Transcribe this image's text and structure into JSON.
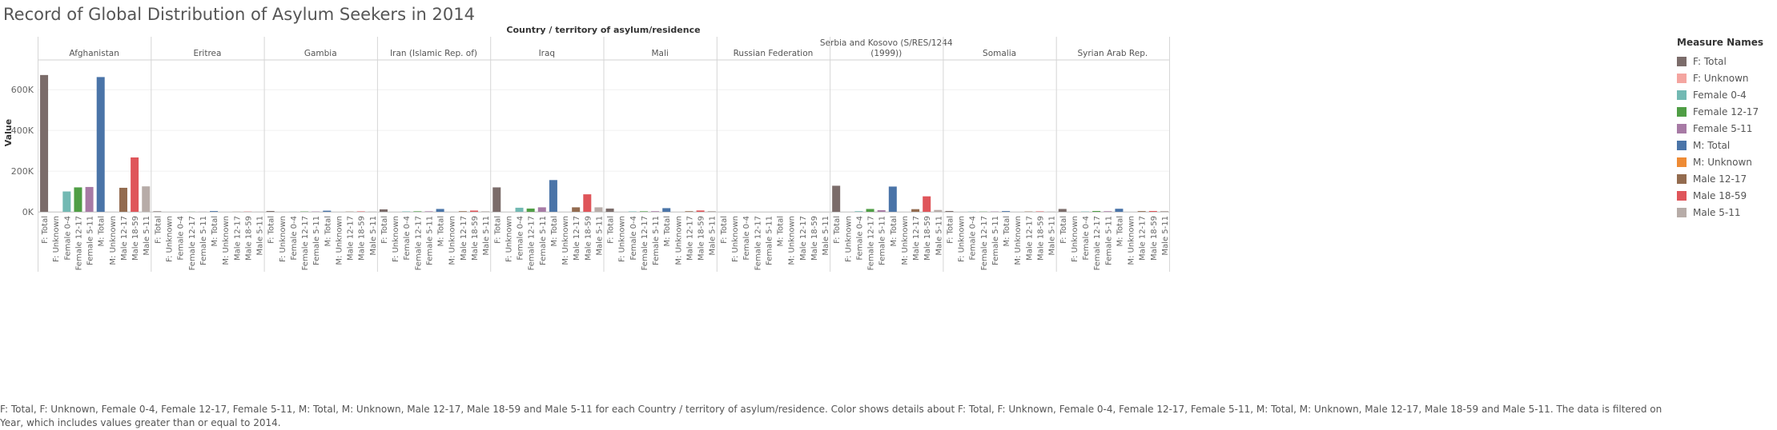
{
  "title": "Record of Global Distribution of Asylum Seekers in 2014",
  "caption": "F: Total, F: Unknown, Female 0-4, Female 12-17, Female 5-11, M: Total, M: Unknown, Male 12-17, Male 18-59 and Male 5-11 for each Country / territory of asylum/residence.  Color shows details about F: Total, F: Unknown, Female 0-4, Female 12-17, Female 5-11, M: Total, M: Unknown, Male 12-17, Male 18-59 and Male 5-11. The data is filtered on Year, which includes values greater than or equal to 2014.",
  "legend": {
    "title": "Measure Names",
    "items": [
      {
        "label": "F: Total",
        "color": "#7b6c6a"
      },
      {
        "label": "F: Unknown",
        "color": "#f4a5a0"
      },
      {
        "label": "Female 0-4",
        "color": "#72b9b3"
      },
      {
        "label": "Female 12-17",
        "color": "#4f9e45"
      },
      {
        "label": "Female 5-11",
        "color": "#a77aa5"
      },
      {
        "label": "M: Total",
        "color": "#4a74a8"
      },
      {
        "label": "M: Unknown",
        "color": "#ee8b35"
      },
      {
        "label": "Male 12-17",
        "color": "#936b4f"
      },
      {
        "label": "Male 18-59",
        "color": "#df555a"
      },
      {
        "label": "Male 5-11",
        "color": "#b7aca8"
      }
    ]
  },
  "chart_data": {
    "type": "bar",
    "column_header": "Country / territory of asylum/residence",
    "ylabel": "Value",
    "ylim": [
      0,
      750000
    ],
    "yticks": [
      0,
      200000,
      400000,
      600000
    ],
    "ytick_labels": [
      "0K",
      "200K",
      "400K",
      "600K"
    ],
    "categories": [
      "F: Total",
      "F: Unknown",
      "Female 0-4",
      "Female 12-17",
      "Female 5-11",
      "M: Total",
      "M: Unknown",
      "Male 12-17",
      "Male 18-59",
      "Male 5-11"
    ],
    "panels": [
      {
        "name": "Afghanistan",
        "values": [
          672000,
          0,
          100000,
          120000,
          122000,
          662000,
          0,
          118000,
          267000,
          125000
        ]
      },
      {
        "name": "Eritrea",
        "values": [
          2500,
          0,
          0,
          500,
          500,
          3500,
          0,
          500,
          1000,
          500
        ]
      },
      {
        "name": "Gambia",
        "values": [
          4000,
          0,
          500,
          1500,
          1500,
          5500,
          0,
          1000,
          2000,
          1000
        ]
      },
      {
        "name": "Iran (Islamic Rep. of)",
        "values": [
          12000,
          0,
          2000,
          2500,
          2500,
          14000,
          0,
          3000,
          6000,
          2500
        ]
      },
      {
        "name": "Iraq",
        "values": [
          120000,
          0,
          20000,
          16000,
          22000,
          156000,
          0,
          22000,
          86000,
          22000
        ]
      },
      {
        "name": "Mali",
        "values": [
          16000,
          0,
          2000,
          2500,
          3000,
          18000,
          0,
          3000,
          6500,
          3500
        ]
      },
      {
        "name": "Russian Federation",
        "values": [
          0,
          0,
          0,
          0,
          0,
          0,
          0,
          0,
          0,
          0
        ]
      },
      {
        "name": "Serbia and Kosovo (S/RES/1244 (1999))",
        "values": [
          128000,
          0,
          3000,
          14000,
          8000,
          124000,
          0,
          13000,
          76000,
          9000
        ]
      },
      {
        "name": "Somalia",
        "values": [
          4000,
          0,
          1000,
          1000,
          1500,
          3500,
          0,
          1500,
          2000,
          1000
        ]
      },
      {
        "name": "Syrian Arab Rep.",
        "values": [
          14000,
          0,
          1500,
          4000,
          3000,
          15000,
          0,
          3500,
          4000,
          4000
        ]
      }
    ]
  }
}
